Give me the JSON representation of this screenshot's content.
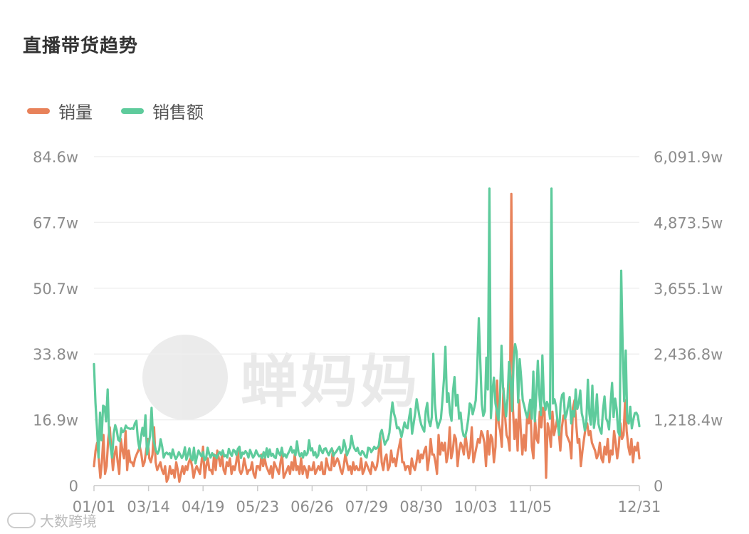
{
  "title": "直播带货趋势",
  "watermark_text": "蝉妈妈",
  "footer_text": "大数跨境",
  "colors": {
    "sales_volume": "#E8825A",
    "sales_amount": "#5ECB9C",
    "grid": "#EFEFEF",
    "tick": "#8C8C8C"
  },
  "chart_data": {
    "type": "line",
    "x_ticks": [
      "01/01",
      "03/14",
      "04/19",
      "05/23",
      "06/26",
      "07/29",
      "08/30",
      "10/03",
      "11/05",
      "12/31"
    ],
    "y_left_ticks": [
      "0",
      "16.9w",
      "33.8w",
      "50.7w",
      "67.7w",
      "84.6w"
    ],
    "y_right_ticks": [
      "0",
      "1,218.4w",
      "2,436.8w",
      "3,655.1w",
      "4,873.5w",
      "6,091.9w"
    ],
    "y_left_range": [
      0,
      84.6
    ],
    "y_right_range": [
      0,
      6091.9
    ],
    "series": [
      {
        "name": "销量",
        "axis": "left",
        "values": [
          5,
          9,
          11,
          7,
          2,
          6,
          13,
          3,
          5,
          12,
          15,
          9,
          4,
          8,
          10,
          6,
          3,
          12,
          9,
          7,
          14,
          4,
          9,
          6,
          6,
          5,
          7,
          8,
          9,
          10,
          8,
          5,
          6,
          9,
          12,
          7,
          6,
          8,
          15,
          6,
          4,
          5,
          6,
          4,
          3,
          5,
          1,
          2,
          5,
          3,
          4,
          2,
          6,
          4,
          1,
          3,
          5,
          3,
          5,
          4,
          6,
          7,
          5,
          2,
          4,
          5,
          4,
          3,
          6,
          10,
          2,
          5,
          7,
          4,
          4,
          3,
          8,
          4,
          9,
          7,
          5,
          8,
          4,
          3,
          6,
          5,
          7,
          3,
          5,
          4,
          6,
          9,
          4,
          3,
          4,
          7,
          5,
          3,
          4,
          4,
          6,
          3,
          2,
          5,
          5,
          4,
          8,
          5,
          7,
          5,
          4,
          3,
          5,
          2,
          6,
          5,
          4,
          3,
          6,
          8,
          2,
          3,
          4,
          5,
          3,
          6,
          4,
          8,
          4,
          5,
          3,
          7,
          3,
          5,
          4,
          2,
          5,
          4,
          4,
          6,
          3,
          4,
          5,
          4,
          6,
          3,
          3,
          7,
          5,
          4,
          4,
          9,
          5,
          6,
          7,
          6,
          4,
          3,
          5,
          8,
          6,
          4,
          5,
          3,
          6,
          4,
          5,
          4,
          4,
          7,
          3,
          4,
          6,
          5,
          4,
          3,
          6,
          5,
          4,
          5,
          8,
          13,
          6,
          4,
          7,
          8,
          4,
          5,
          9,
          6,
          7,
          5,
          8,
          10,
          12,
          6,
          6,
          4,
          5,
          5,
          3,
          7,
          5,
          4,
          6,
          9,
          6,
          8,
          7,
          9,
          10,
          4,
          7,
          12,
          8,
          8,
          6,
          3,
          13,
          8,
          11,
          9,
          11,
          6,
          8,
          15,
          7,
          9,
          13,
          12,
          5,
          9,
          11,
          10,
          8,
          13,
          10,
          7,
          9,
          15,
          6,
          8,
          10,
          12,
          11,
          14,
          13,
          11,
          5,
          14,
          8,
          13,
          12,
          6,
          10,
          27,
          16,
          14,
          10,
          25,
          18,
          13,
          12,
          9,
          75,
          20,
          12,
          17,
          9,
          22,
          14,
          8,
          13,
          9,
          18,
          16,
          21,
          10,
          7,
          17,
          12,
          11,
          19,
          15,
          20,
          19,
          2,
          16,
          14,
          10,
          19,
          13,
          15,
          17,
          14,
          9,
          15,
          18,
          18,
          13,
          12,
          11,
          7,
          20,
          22,
          16,
          11,
          12,
          5,
          9,
          12,
          15,
          16,
          13,
          14,
          11,
          10,
          9,
          7,
          8,
          11,
          7,
          6,
          10,
          8,
          12,
          6,
          9,
          8,
          14,
          11,
          7,
          10,
          16,
          12,
          13,
          22,
          14,
          10,
          8,
          12,
          6,
          10,
          9,
          11,
          7
        ]
      },
      {
        "name": "销售额",
        "axis": "right",
        "values": [
          2250,
          1530,
          1040,
          520,
          1350,
          840,
          1480,
          1460,
          1190,
          1780,
          950,
          700,
          520,
          960,
          1120,
          1030,
          850,
          820,
          1060,
          990,
          1020,
          1110,
          1070,
          1060,
          1050,
          1060,
          1050,
          1150,
          1200,
          850,
          680,
          900,
          1070,
          920,
          1300,
          580,
          740,
          920,
          1440,
          890,
          760,
          640,
          590,
          660,
          860,
          720,
          520,
          590,
          610,
          580,
          600,
          510,
          670,
          560,
          490,
          540,
          620,
          570,
          510,
          560,
          710,
          480,
          570,
          690,
          510,
          470,
          700,
          410,
          540,
          650,
          590,
          540,
          620,
          470,
          510,
          700,
          590,
          520,
          600,
          550,
          560,
          510,
          580,
          620,
          570,
          650,
          540,
          560,
          520,
          680,
          600,
          550,
          660,
          640,
          570,
          680,
          720,
          510,
          610,
          590,
          640,
          600,
          520,
          660,
          590,
          520,
          560,
          650,
          590,
          540,
          560,
          510,
          620,
          520,
          690,
          530,
          670,
          550,
          590,
          530,
          510,
          680,
          600,
          560,
          700,
          540,
          580,
          520,
          590,
          640,
          720,
          610,
          650,
          560,
          820,
          610,
          540,
          600,
          520,
          640,
          560,
          600,
          840,
          650,
          690,
          560,
          620,
          520,
          560,
          740,
          650,
          600,
          680,
          690,
          620,
          560,
          640,
          690,
          550,
          600,
          630,
          680,
          720,
          600,
          650,
          840,
          720,
          560,
          640,
          700,
          920,
          760,
          680,
          640,
          700,
          600,
          570,
          640,
          610,
          540,
          520,
          700,
          690,
          620,
          660,
          720,
          680,
          700,
          740,
          960,
          1030,
          890,
          760,
          820,
          860,
          980,
          1280,
          1540,
          1340,
          1240,
          1060,
          1080,
          1020,
          900,
          1040,
          1170,
          1080,
          1060,
          1260,
          1420,
          960,
          1150,
          1340,
          1600,
          1430,
          1250,
          1130,
          1060,
          1000,
          1380,
          1530,
          1200,
          1100,
          1270,
          2440,
          1530,
          1210,
          1070,
          1160,
          1240,
          1580,
          1960,
          2570,
          1550,
          1710,
          1350,
          1200,
          1760,
          2010,
          1480,
          1680,
          1240,
          1350,
          1050,
          920,
          900,
          1030,
          1220,
          1520,
          1490,
          1320,
          1440,
          1580,
          2180,
          3100,
          2290,
          1510,
          1290,
          1380,
          2370,
          1780,
          5500,
          1250,
          1740,
          2000,
          1520,
          1370,
          1210,
          1590,
          2590,
          1820,
          1570,
          1280,
          1620,
          2290,
          1990,
          1380,
          2310,
          2620,
          2480,
          1540,
          2340,
          2000,
          1580,
          1480,
          1350,
          1260,
          1420,
          1590,
          1240,
          2110,
          1190,
          1700,
          2310,
          1680,
          1310,
          2410,
          1600,
          1400,
          1550,
          1480,
          1240,
          5500,
          1520,
          1600,
          1460,
          1180,
          940,
          1520,
          1680,
          1710,
          1240,
          1330,
          1490,
          1640,
          1150,
          1380,
          1280,
          1780,
          1420,
          1520,
          1760,
          1340,
          1210,
          1020,
          1170,
          1960,
          1330,
          1130,
          1850,
          1070,
          1290,
          1690,
          1140,
          1030,
          960,
          1400,
          1650,
          1250,
          1180,
          1040,
          1520,
          1900,
          1270,
          1610,
          1420,
          1000,
          930,
          3980,
          2560,
          1560,
          2500,
          1200,
          1150,
          1460,
          1060,
          1220,
          1340,
          1350,
          1290,
          1100
        ]
      }
    ]
  }
}
